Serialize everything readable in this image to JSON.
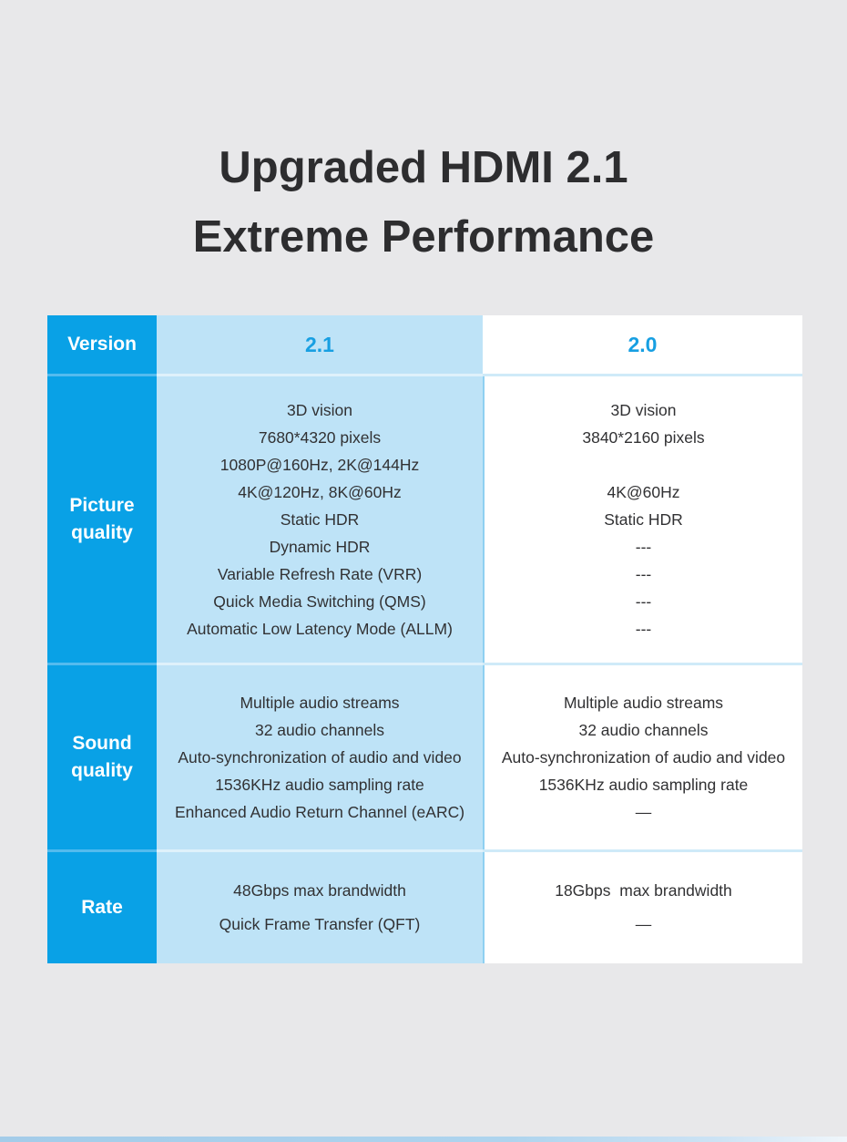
{
  "title": {
    "line1": "Upgraded HDMI 2.1",
    "line2": "Extreme Performance"
  },
  "table": {
    "header": {
      "label": "Version",
      "v21": "2.1",
      "v20": "2.0"
    },
    "rows": [
      {
        "label_lines": [
          "Picture",
          "quality"
        ],
        "v21": [
          "3D vision",
          "7680*4320 pixels",
          "1080P@160Hz, 2K@144Hz",
          "4K@120Hz, 8K@60Hz",
          "Static HDR",
          "Dynamic HDR",
          "Variable Refresh Rate (VRR)",
          "Quick Media Switching (QMS)",
          "Automatic Low Latency Mode (ALLM)"
        ],
        "v20": [
          "3D vision",
          "3840*2160 pixels",
          "",
          "4K@60Hz",
          "Static HDR",
          "---",
          "---",
          "---",
          "---"
        ]
      },
      {
        "label_lines": [
          "Sound",
          "quality"
        ],
        "v21": [
          "Multiple audio streams",
          "32 audio channels",
          "Auto-synchronization of audio and video",
          "1536KHz audio sampling rate",
          "Enhanced Audio Return Channel (eARC)"
        ],
        "v20": [
          "Multiple audio streams",
          "32 audio channels",
          "Auto-synchronization of audio and video",
          "1536KHz audio sampling rate",
          "—"
        ]
      },
      {
        "label_lines": [
          "Rate"
        ],
        "v21": [
          "48Gbps max brandwidth",
          "Quick Frame Transfer (QFT)"
        ],
        "v20": [
          "18Gbps  max brandwidth",
          "—"
        ]
      }
    ]
  },
  "colors": {
    "brand_blue": "#09a1e6",
    "light_blue": "#bee3f7",
    "header_value_text": "#179fe2",
    "body_text": "#313133",
    "background": "#e8e8ea"
  }
}
